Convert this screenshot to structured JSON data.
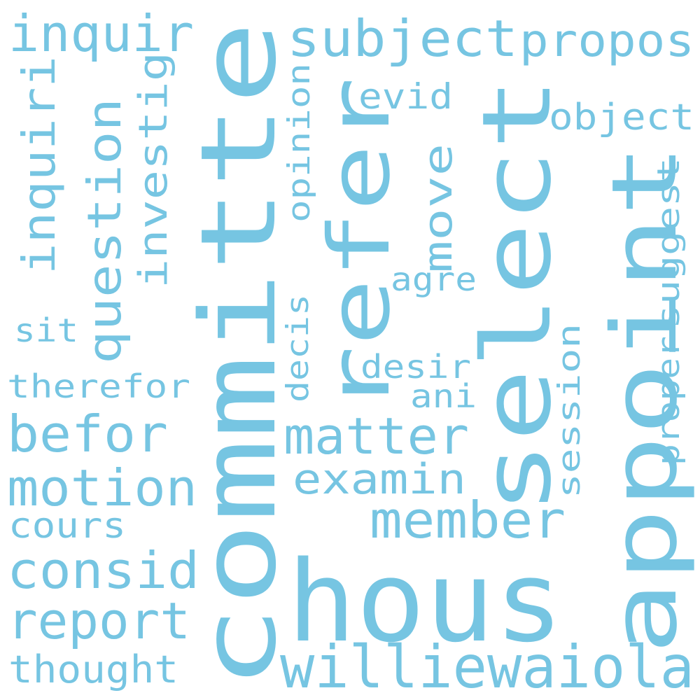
{
  "color": "#76c5e2",
  "background": "#ffffff",
  "words": {
    "committe": "committe",
    "hous": "hous",
    "select": "select",
    "appoint": "appoint",
    "refer": "refer",
    "williewaiola": "williewaiola",
    "member": "member",
    "matter": "matter",
    "examin": "examin",
    "subject": "subject",
    "propos": "propos",
    "inquir": "inquir",
    "inquiri": "inquiri",
    "question": "question",
    "investig": "investig",
    "opinion": "opinion",
    "move": "move",
    "evid": "evid",
    "object": "object",
    "suggest": "suggest",
    "session": "session",
    "proper": "proper",
    "agre": "agre",
    "desir": "desir",
    "ani": "ani",
    "decis": "decis",
    "sit": "sit",
    "therefor": "therefor",
    "befor": "befor",
    "motion": "motion",
    "cours": "cours",
    "consid": "consid",
    "report": "report",
    "thought": "thought"
  }
}
